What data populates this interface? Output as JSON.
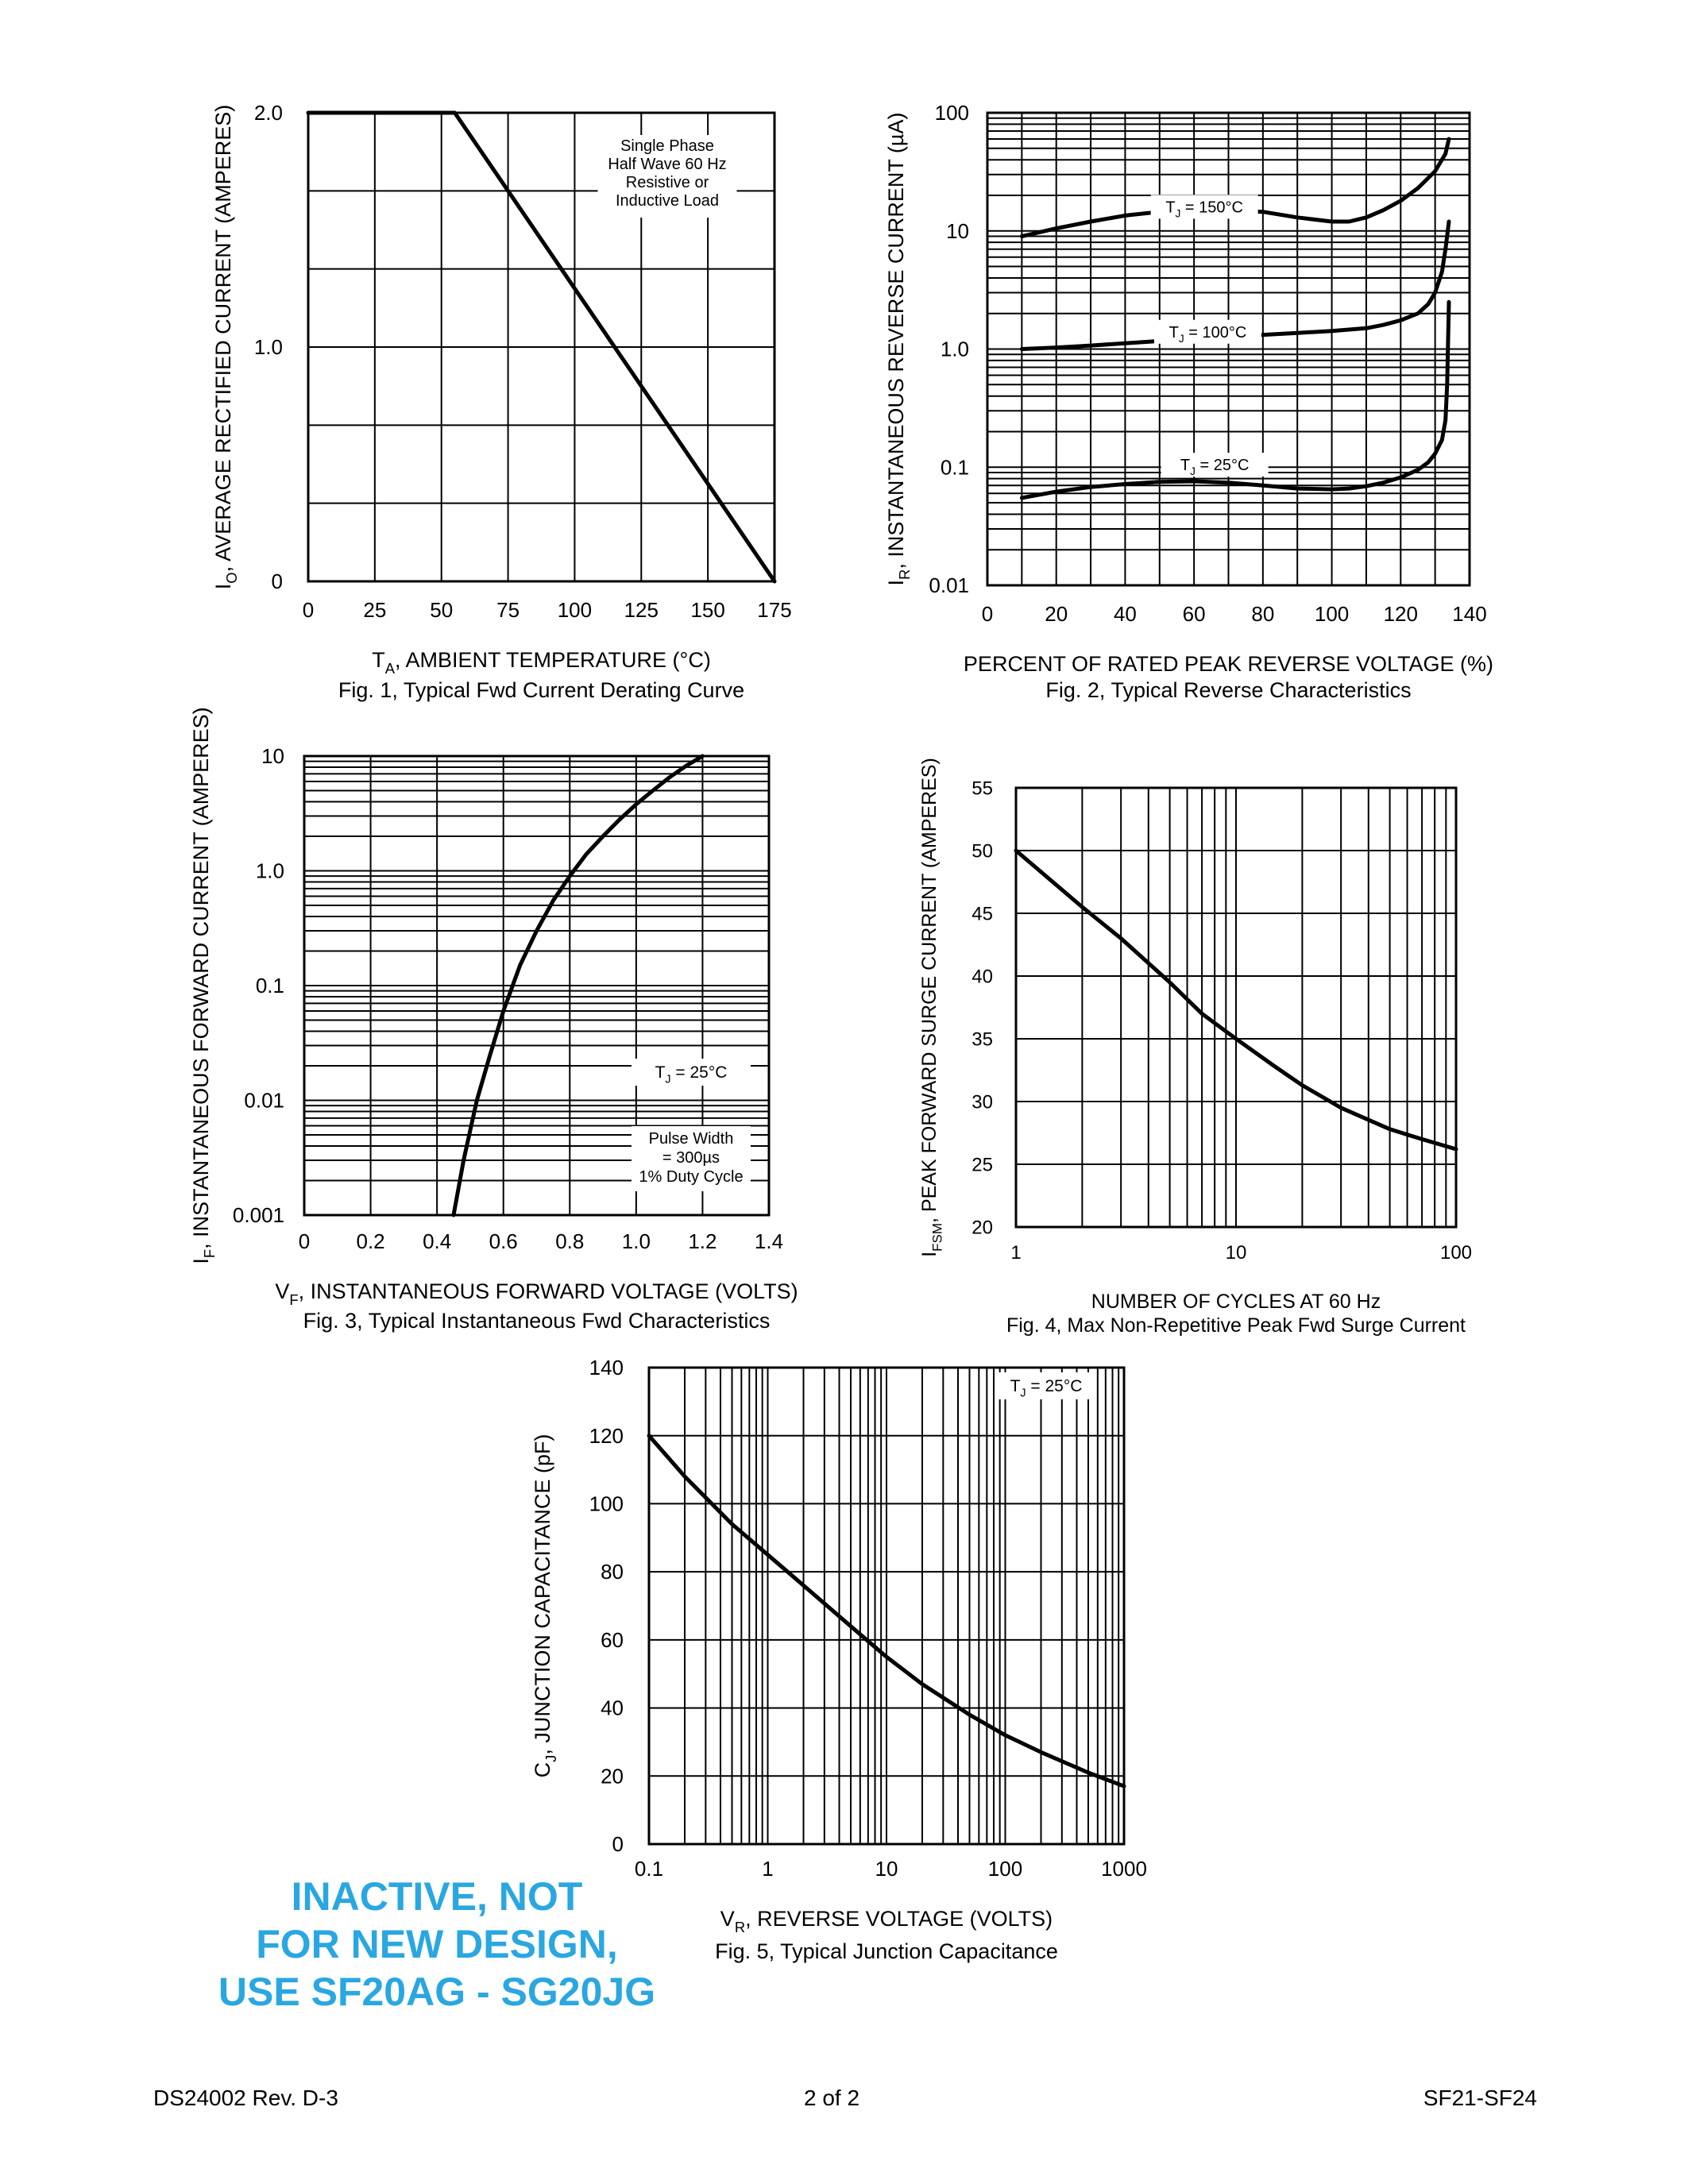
{
  "footer": {
    "left": "DS24002 Rev. D-3",
    "center": "2 of 2",
    "right": "SF21-SF24"
  },
  "stamp": {
    "lines": [
      "INACTIVE, NOT",
      "FOR NEW DESIGN,",
      "USE SF20AG - SG20JG"
    ],
    "color": "#2aa7e0"
  },
  "chart_data": [
    {
      "id": "fig1",
      "type": "line",
      "caption": "Fig. 1,  Typical Fwd Current Derating Curve",
      "xlabel": {
        "main": "T",
        "sub": "A",
        "rest": ", AMBIENT TEMPERATURE (°C)"
      },
      "ylabel": {
        "main": "I",
        "sub": "O",
        "rest": ", AVERAGE RECTIFIED CURRENT (AMPERES)"
      },
      "x_scale": "linear",
      "y_scale": "linear",
      "xlim": [
        0,
        175
      ],
      "ylim": [
        0,
        2.0
      ],
      "xticks": [
        0,
        25,
        50,
        75,
        100,
        125,
        150,
        175
      ],
      "xtick_labels": [
        "0",
        "25",
        "50",
        "75",
        "100",
        "125",
        "150",
        "175"
      ],
      "yticks": [
        0,
        1.0,
        2.0
      ],
      "ytick_labels": [
        "0",
        "1.0",
        "2.0"
      ],
      "grid": true,
      "annotation": [
        "Single Phase",
        "Half Wave 60 Hz",
        "Resistive or",
        "Inductive Load"
      ],
      "series": [
        {
          "x": [
            0,
            55,
            175
          ],
          "y": [
            2.0,
            2.0,
            0
          ]
        }
      ]
    },
    {
      "id": "fig2",
      "type": "line",
      "caption": "Fig. 2,  Typical Reverse Characteristics",
      "xlabel": {
        "main": "PERCENT OF RATED PEAK REVERSE VOLTAGE (%)",
        "sub": "",
        "rest": ""
      },
      "ylabel": {
        "main": "I",
        "sub": "R",
        "rest": ", INSTANTANEOUS REVERSE CURRENT (µA)"
      },
      "x_scale": "linear",
      "y_scale": "log",
      "xlim": [
        0,
        140
      ],
      "ylim": [
        0.01,
        100
      ],
      "xticks": [
        0,
        20,
        40,
        60,
        80,
        100,
        120,
        140
      ],
      "xtick_labels": [
        "0",
        "20",
        "40",
        "60",
        "80",
        "100",
        "120",
        "140"
      ],
      "yticks": [
        0.01,
        0.1,
        1.0,
        10,
        100
      ],
      "ytick_labels": [
        "0.01",
        "0.1",
        "1.0",
        "10",
        "100"
      ],
      "grid": true,
      "series": [
        {
          "label": {
            "main": "T",
            "sub": "J",
            "rest": " = 150°C"
          },
          "label_at": [
            63,
            16
          ],
          "x": [
            10,
            20,
            30,
            40,
            50,
            60,
            70,
            80,
            90,
            100,
            105,
            110,
            115,
            120,
            125,
            130,
            133,
            134
          ],
          "y": [
            9,
            10.5,
            12,
            13.5,
            14.5,
            15,
            15,
            14.5,
            13,
            12,
            12,
            13,
            15,
            18,
            23,
            32,
            45,
            60
          ]
        },
        {
          "label": {
            "main": "T",
            "sub": "J",
            "rest": " = 100°C"
          },
          "label_at": [
            64,
            1.4
          ],
          "x": [
            10,
            20,
            30,
            40,
            50,
            60,
            70,
            80,
            90,
            100,
            110,
            115,
            120,
            125,
            128,
            130,
            132,
            133,
            134
          ],
          "y": [
            1.0,
            1.03,
            1.07,
            1.12,
            1.17,
            1.22,
            1.27,
            1.32,
            1.37,
            1.42,
            1.5,
            1.6,
            1.75,
            2.0,
            2.4,
            3.0,
            4.5,
            7,
            12
          ]
        },
        {
          "label": {
            "main": "T",
            "sub": "J",
            "rest": " = 25°C"
          },
          "label_at": [
            66,
            0.105
          ],
          "x": [
            10,
            20,
            30,
            40,
            50,
            60,
            70,
            80,
            90,
            100,
            105,
            110,
            115,
            120,
            125,
            128,
            130,
            132,
            133,
            133.5,
            134
          ],
          "y": [
            0.055,
            0.062,
            0.068,
            0.072,
            0.075,
            0.076,
            0.074,
            0.07,
            0.066,
            0.065,
            0.066,
            0.069,
            0.074,
            0.082,
            0.095,
            0.11,
            0.13,
            0.17,
            0.25,
            0.5,
            2.5
          ]
        }
      ]
    },
    {
      "id": "fig3",
      "type": "line",
      "caption": "Fig. 3,  Typical Instantaneous Fwd Characteristics",
      "xlabel": {
        "main": "V",
        "sub": "F",
        "rest": ", INSTANTANEOUS FORWARD VOLTAGE (VOLTS)"
      },
      "ylabel": {
        "main": "I",
        "sub": "F",
        "rest": ", INSTANTANEOUS FORWARD CURRENT (AMPERES)"
      },
      "x_scale": "linear",
      "y_scale": "log",
      "xlim": [
        0,
        1.4
      ],
      "ylim": [
        0.001,
        10
      ],
      "xticks": [
        0,
        0.2,
        0.4,
        0.6,
        0.8,
        1.0,
        1.2,
        1.4
      ],
      "xtick_labels": [
        "0",
        "0.2",
        "0.4",
        "0.6",
        "0.8",
        "1.0",
        "1.2",
        "1.4"
      ],
      "yticks": [
        0.001,
        0.01,
        0.1,
        1.0,
        10
      ],
      "ytick_labels": [
        "0.001",
        "0.01",
        "0.1",
        "1.0",
        "10"
      ],
      "grid": true,
      "annotation_tj": {
        "main": "T",
        "sub": "J",
        "rest": " = 25°C"
      },
      "annotation": [
        "Pulse Width",
        "= 300µs",
        "1% Duty Cycle"
      ],
      "series": [
        {
          "x": [
            0.45,
            0.48,
            0.52,
            0.56,
            0.6,
            0.65,
            0.7,
            0.75,
            0.8,
            0.85,
            0.9,
            0.95,
            1.0,
            1.05,
            1.1,
            1.15,
            1.2
          ],
          "y": [
            0.001,
            0.003,
            0.01,
            0.025,
            0.06,
            0.15,
            0.3,
            0.55,
            0.9,
            1.4,
            2.0,
            2.8,
            3.8,
            5.0,
            6.5,
            8.2,
            10
          ]
        }
      ]
    },
    {
      "id": "fig4",
      "type": "line",
      "caption": "Fig. 4,  Max Non-Repetitive Peak Fwd Surge Current",
      "xlabel": {
        "main": "NUMBER OF CYCLES AT 60 Hz",
        "sub": "",
        "rest": ""
      },
      "ylabel": {
        "main": "I",
        "sub": "FSM",
        "rest": ", PEAK FORWARD SURGE CURRENT (AMPERES)"
      },
      "x_scale": "log",
      "y_scale": "linear",
      "xlim": [
        1,
        100
      ],
      "ylim": [
        20,
        55
      ],
      "xticks": [
        1,
        10,
        100
      ],
      "xtick_labels": [
        "1",
        "10",
        "100"
      ],
      "yticks": [
        20,
        25,
        30,
        35,
        40,
        45,
        50,
        55
      ],
      "ytick_labels": [
        "20",
        "25",
        "30",
        "35",
        "40",
        "45",
        "50",
        "55"
      ],
      "grid": true,
      "series": [
        {
          "x": [
            1,
            2,
            3,
            5,
            7,
            10,
            15,
            20,
            30,
            50,
            70,
            100
          ],
          "y": [
            50,
            45.5,
            43,
            39.5,
            37,
            35,
            32.8,
            31.3,
            29.5,
            27.8,
            27,
            26.2
          ]
        }
      ]
    },
    {
      "id": "fig5",
      "type": "line",
      "caption": "Fig. 5,  Typical Junction Capacitance",
      "xlabel": {
        "main": "V",
        "sub": "R",
        "rest": ", REVERSE VOLTAGE (VOLTS)"
      },
      "ylabel": {
        "main": "C",
        "sub": "J",
        "rest": ", JUNCTION CAPACITANCE (pF)"
      },
      "x_scale": "log",
      "y_scale": "linear",
      "xlim": [
        0.1,
        1000
      ],
      "ylim": [
        0,
        140
      ],
      "xticks": [
        0.1,
        1,
        10,
        100,
        1000
      ],
      "xtick_labels": [
        "0.1",
        "1",
        "10",
        "100",
        "1000"
      ],
      "yticks": [
        0,
        20,
        40,
        60,
        80,
        100,
        120,
        140
      ],
      "ytick_labels": [
        "0",
        "20",
        "40",
        "60",
        "80",
        "100",
        "120",
        "140"
      ],
      "grid": true,
      "annotation_tj": {
        "main": "T",
        "sub": "J",
        "rest": " = 25°C"
      },
      "series": [
        {
          "x": [
            0.1,
            0.2,
            0.5,
            1,
            2,
            5,
            10,
            20,
            50,
            100,
            200,
            500,
            1000
          ],
          "y": [
            120,
            108,
            94,
            85,
            76,
            64,
            55,
            47,
            38,
            32,
            27,
            21,
            17
          ]
        }
      ]
    }
  ]
}
